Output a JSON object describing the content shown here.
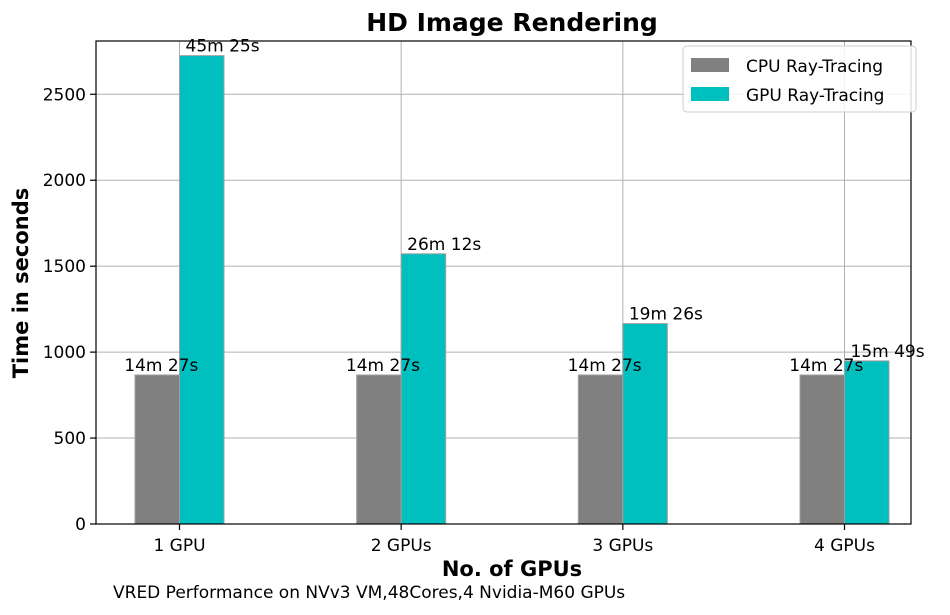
{
  "chart_data": {
    "type": "bar",
    "title": "HD Image Rendering",
    "xlabel": "No. of GPUs",
    "ylabel": "Time in seconds",
    "categories": [
      "1 GPU",
      "2 GPUs",
      "3 GPUs",
      "4 GPUs"
    ],
    "ylim": [
      0,
      2810
    ],
    "yticks": [
      0,
      500,
      1000,
      1500,
      2000,
      2500
    ],
    "grid": true,
    "legend_position": "top-right",
    "series": [
      {
        "name": "CPU Ray-Tracing",
        "color": "#808080",
        "values": [
          867,
          867,
          867,
          867
        ],
        "labels": [
          "14m 27s",
          "14m 27s",
          "14m 27s",
          "14m 27s"
        ]
      },
      {
        "name": "GPU Ray-Tracing",
        "color": "#00bfbf",
        "values": [
          2725,
          1572,
          1166,
          949
        ],
        "labels": [
          "45m 25s",
          "26m 12s",
          "19m 26s",
          "15m 49s"
        ]
      }
    ]
  },
  "footnote": "VRED Performance on NVv3 VM,48Cores,4 Nvidia-M60 GPUs"
}
